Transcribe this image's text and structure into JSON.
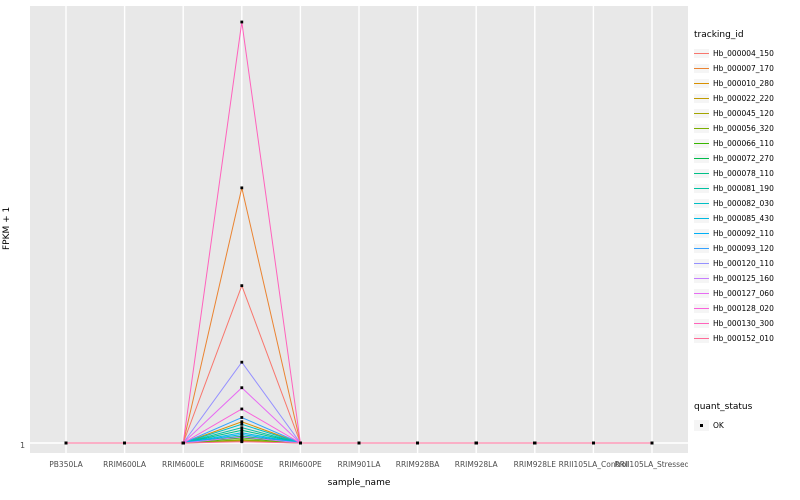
{
  "chart_data": {
    "type": "line",
    "title": "",
    "xlabel": "sample_name",
    "ylabel": "FPKM + 1",
    "ytick_labels": [
      "1"
    ],
    "panel_bg": "#E8E8E8",
    "grid_color": "#FFFFFF",
    "legend_title": "tracking_id",
    "legend_position": "right",
    "categories": [
      "PB350LA",
      "RRIM600LA",
      "RRIM600LE",
      "RRIM600SE",
      "RRIM600PE",
      "RRIM901LA",
      "RRIM928BA",
      "RRIM928LA",
      "RRIM928LE",
      "RRII105LA_Control",
      "RRII105LA_Stressed"
    ],
    "series": [
      {
        "name": "Hb_000004_150",
        "color": "#F8766D",
        "values": [
          1,
          1,
          1,
          38,
          1,
          1,
          1,
          1,
          1,
          1,
          1
        ]
      },
      {
        "name": "Hb_000007_170",
        "color": "#EA8331",
        "values": [
          1,
          1,
          1,
          61,
          1,
          1,
          1,
          1,
          1,
          1,
          1
        ]
      },
      {
        "name": "Hb_000010_280",
        "color": "#D89000",
        "values": [
          1,
          1,
          1,
          6,
          1,
          1,
          1,
          1,
          1,
          1,
          1
        ]
      },
      {
        "name": "Hb_000022_220",
        "color": "#C09B00",
        "values": [
          1,
          1,
          1,
          1.6,
          1,
          1,
          1,
          1,
          1,
          1,
          1
        ]
      },
      {
        "name": "Hb_000045_120",
        "color": "#A3A500",
        "values": [
          1,
          1,
          1,
          1.4,
          1,
          1,
          1,
          1,
          1,
          1,
          1
        ]
      },
      {
        "name": "Hb_000056_320",
        "color": "#7CAE00",
        "values": [
          1,
          1,
          1,
          1.8,
          1,
          1,
          1,
          1,
          1,
          1,
          1
        ]
      },
      {
        "name": "Hb_000066_110",
        "color": "#39B600",
        "values": [
          1,
          1,
          1,
          2.2,
          1,
          1,
          1,
          1,
          1,
          1,
          1
        ]
      },
      {
        "name": "Hb_000072_270",
        "color": "#00BB4E",
        "values": [
          1,
          1,
          1,
          2.6,
          1,
          1,
          1,
          1,
          1,
          1,
          1
        ]
      },
      {
        "name": "Hb_000078_110",
        "color": "#00C087",
        "values": [
          1,
          1,
          1,
          4,
          1,
          1,
          1,
          1,
          1,
          1,
          1
        ]
      },
      {
        "name": "Hb_000081_190",
        "color": "#00C1A3",
        "values": [
          1,
          1,
          1,
          4.6,
          1,
          1,
          1,
          1,
          1,
          1,
          1
        ]
      },
      {
        "name": "Hb_000082_030",
        "color": "#00BFC4",
        "values": [
          1,
          1,
          1,
          5.4,
          1,
          1,
          1,
          1,
          1,
          1,
          1
        ]
      },
      {
        "name": "Hb_000085_430",
        "color": "#00BAE0",
        "values": [
          1,
          1,
          1,
          3.4,
          1,
          1,
          1,
          1,
          1,
          1,
          1
        ]
      },
      {
        "name": "Hb_000092_110",
        "color": "#00B0F6",
        "values": [
          1,
          1,
          1,
          3,
          1,
          1,
          1,
          1,
          1,
          1,
          1
        ]
      },
      {
        "name": "Hb_000093_120",
        "color": "#35A2FF",
        "values": [
          1,
          1,
          1,
          7,
          1,
          1,
          1,
          1,
          1,
          1,
          1
        ]
      },
      {
        "name": "Hb_000120_110",
        "color": "#9590FF",
        "values": [
          1,
          1,
          1,
          20,
          1,
          1,
          1,
          1,
          1,
          1,
          1
        ]
      },
      {
        "name": "Hb_000125_160",
        "color": "#C77CFF",
        "values": [
          1,
          1,
          1,
          2.4,
          1,
          1,
          1,
          1,
          1,
          1,
          1
        ]
      },
      {
        "name": "Hb_000127_060",
        "color": "#E76BF3",
        "values": [
          1,
          1,
          1,
          14,
          1,
          1,
          1,
          1,
          1,
          1,
          1
        ]
      },
      {
        "name": "Hb_000128_020",
        "color": "#FA62DB",
        "values": [
          1,
          1,
          1,
          9,
          1,
          1,
          1,
          1,
          1,
          1,
          1
        ]
      },
      {
        "name": "Hb_000130_300",
        "color": "#FF62BC",
        "values": [
          1,
          1,
          1,
          100,
          1,
          1,
          1,
          1,
          1,
          1,
          1
        ]
      },
      {
        "name": "Hb_000152_010",
        "color": "#FF6A98",
        "values": [
          1,
          1,
          1,
          1.3,
          1,
          1,
          1,
          1,
          1,
          1,
          1
        ]
      }
    ],
    "point_legend": {
      "title": "quant_status",
      "items": [
        {
          "label": "OK",
          "marker": "black-square"
        }
      ]
    },
    "ylim_note": "only tick shown is 1 at baseline; peak heights estimated relative to tallest series = 100"
  }
}
